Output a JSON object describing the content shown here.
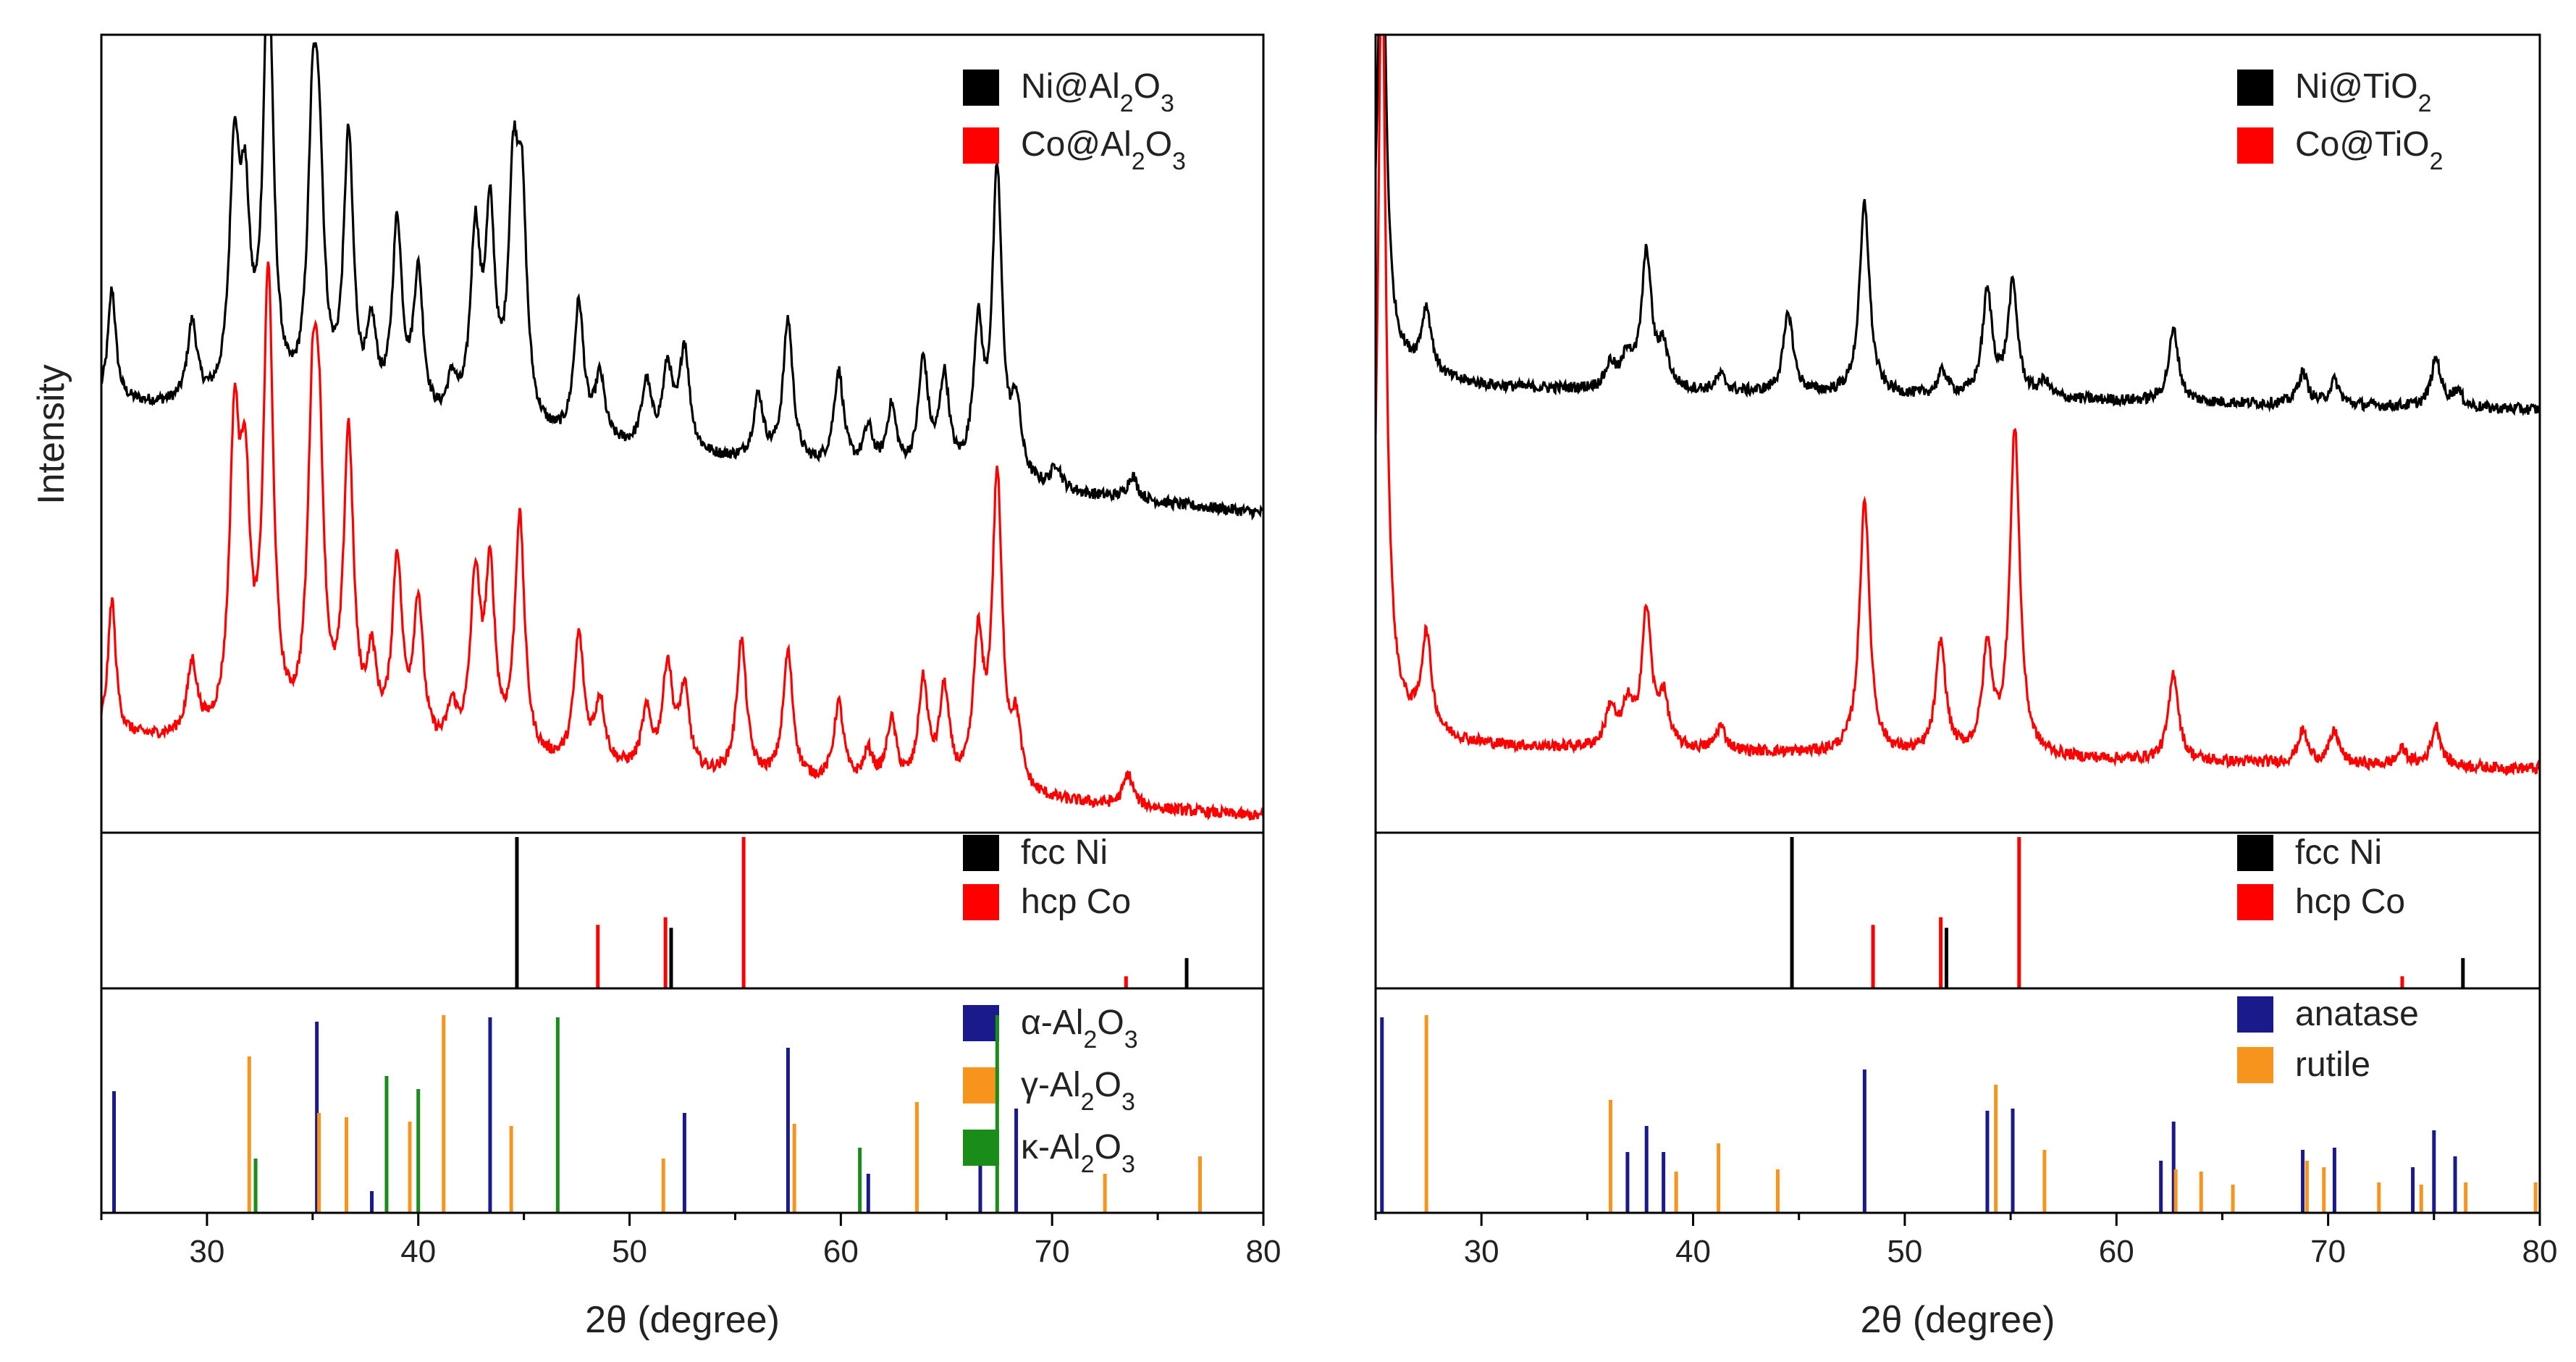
{
  "chart_data": [
    {
      "type": "line",
      "panel": "left",
      "title": "",
      "xlabel": "2θ (degree)",
      "ylabel": "Intensity",
      "xlim": [
        25,
        80
      ],
      "xticks": [
        "30",
        "40",
        "50",
        "60",
        "70",
        "80"
      ],
      "legend": [
        {
          "label": "Ni@Al₂O₃",
          "color": "#000000"
        },
        {
          "label": "Co@Al₂O₃",
          "color": "#ff0000"
        }
      ],
      "legend_position": "top-right",
      "series": [
        {
          "name": "Ni@Al₂O₃",
          "color": "#000000",
          "baseline_start": 0.54,
          "baseline_end": 0.4,
          "peaks": [
            [
              25.5,
              0.14
            ],
            [
              29.3,
              0.1
            ],
            [
              31.3,
              0.3
            ],
            [
              31.8,
              0.22
            ],
            [
              32.9,
              0.56
            ],
            [
              35.0,
              0.31
            ],
            [
              35.3,
              0.26
            ],
            [
              36.7,
              0.34
            ],
            [
              37.8,
              0.1
            ],
            [
              39.0,
              0.24
            ],
            [
              40.0,
              0.18
            ],
            [
              41.6,
              0.05
            ],
            [
              42.7,
              0.23
            ],
            [
              43.4,
              0.25
            ],
            [
              44.5,
              0.28
            ],
            [
              44.9,
              0.26
            ],
            [
              47.6,
              0.17
            ],
            [
              48.6,
              0.08
            ],
            [
              50.8,
              0.08
            ],
            [
              51.8,
              0.1
            ],
            [
              52.6,
              0.13
            ],
            [
              56.1,
              0.08
            ],
            [
              57.5,
              0.18
            ],
            [
              59.9,
              0.12
            ],
            [
              61.3,
              0.05
            ],
            [
              62.4,
              0.08
            ],
            [
              63.9,
              0.14
            ],
            [
              64.9,
              0.12
            ],
            [
              66.5,
              0.18
            ],
            [
              67.4,
              0.38
            ],
            [
              68.3,
              0.09
            ],
            [
              70.2,
              0.03
            ],
            [
              73.8,
              0.03
            ]
          ]
        },
        {
          "name": "Co@Al₂O₃",
          "color": "#ff0000",
          "baseline_start": 0.12,
          "baseline_end": 0.02,
          "peaks": [
            [
              25.5,
              0.17
            ],
            [
              29.3,
              0.09
            ],
            [
              31.3,
              0.36
            ],
            [
              31.8,
              0.28
            ],
            [
              32.9,
              0.57
            ],
            [
              35.0,
              0.35
            ],
            [
              35.3,
              0.3
            ],
            [
              36.7,
              0.38
            ],
            [
              37.8,
              0.1
            ],
            [
              39.0,
              0.23
            ],
            [
              40.0,
              0.18
            ],
            [
              41.6,
              0.05
            ],
            [
              42.7,
              0.21
            ],
            [
              43.4,
              0.22
            ],
            [
              44.8,
              0.3
            ],
            [
              47.6,
              0.16
            ],
            [
              48.6,
              0.08
            ],
            [
              50.8,
              0.07
            ],
            [
              51.8,
              0.13
            ],
            [
              52.6,
              0.1
            ],
            [
              55.3,
              0.17
            ],
            [
              57.5,
              0.16
            ],
            [
              59.9,
              0.1
            ],
            [
              61.3,
              0.04
            ],
            [
              62.4,
              0.08
            ],
            [
              63.9,
              0.13
            ],
            [
              64.9,
              0.12
            ],
            [
              66.5,
              0.18
            ],
            [
              67.4,
              0.39
            ],
            [
              68.3,
              0.08
            ],
            [
              73.6,
              0.04
            ]
          ]
        }
      ],
      "reference_metals": [
        {
          "name": "fcc Ni",
          "color": "#000000",
          "lines": [
            [
              44.6,
              1.0
            ],
            [
              51.9,
              0.4
            ],
            [
              76.3,
              0.2
            ]
          ]
        },
        {
          "name": "hcp Co",
          "color": "#ff0000",
          "lines": [
            [
              48.5,
              0.42
            ],
            [
              51.7,
              0.47
            ],
            [
              55.4,
              1.0
            ],
            [
              73.5,
              0.08
            ]
          ]
        }
      ],
      "reference_supports": [
        {
          "name": "α-Al₂O₃",
          "color": "#1a1a8c",
          "lines": [
            [
              25.6,
              0.56
            ],
            [
              35.2,
              0.88
            ],
            [
              37.8,
              0.1
            ],
            [
              43.4,
              0.9
            ],
            [
              52.6,
              0.46
            ],
            [
              57.5,
              0.76
            ],
            [
              61.3,
              0.18
            ],
            [
              66.6,
              0.36
            ],
            [
              68.3,
              0.48
            ]
          ]
        },
        {
          "name": "γ-Al₂O₃",
          "color": "#f7941d",
          "lines": [
            [
              32.0,
              0.72
            ],
            [
              35.3,
              0.46
            ],
            [
              36.6,
              0.44
            ],
            [
              39.6,
              0.42
            ],
            [
              41.2,
              0.91
            ],
            [
              44.4,
              0.4
            ],
            [
              51.6,
              0.25
            ],
            [
              57.8,
              0.41
            ],
            [
              63.6,
              0.51
            ],
            [
              72.5,
              0.18
            ],
            [
              77.0,
              0.26
            ]
          ]
        },
        {
          "name": "κ-Al₂O₃",
          "color": "#1a8c1a",
          "lines": [
            [
              32.3,
              0.25
            ],
            [
              38.5,
              0.63
            ],
            [
              40.0,
              0.57
            ],
            [
              46.6,
              0.9
            ],
            [
              60.9,
              0.3
            ],
            [
              67.4,
              0.91
            ]
          ]
        }
      ]
    },
    {
      "type": "line",
      "panel": "right",
      "title": "",
      "xlabel": "2θ (degree)",
      "ylabel": "",
      "xlim": [
        25,
        80
      ],
      "xticks": [
        "30",
        "40",
        "50",
        "60",
        "70",
        "80"
      ],
      "legend": [
        {
          "label": "Ni@TiO₂",
          "color": "#000000"
        },
        {
          "label": "Co@TiO₂",
          "color": "#ff0000"
        }
      ],
      "legend_position": "top-right",
      "series": [
        {
          "name": "Ni@TiO₂",
          "color": "#000000",
          "baseline_start": 0.56,
          "baseline_end": 0.53,
          "peaks": [
            [
              25.3,
              0.6
            ],
            [
              27.4,
              0.08
            ],
            [
              36.1,
              0.03
            ],
            [
              36.9,
              0.04
            ],
            [
              37.8,
              0.17
            ],
            [
              38.6,
              0.05
            ],
            [
              41.3,
              0.02
            ],
            [
              44.5,
              0.1
            ],
            [
              48.1,
              0.24
            ],
            [
              51.8,
              0.03
            ],
            [
              53.9,
              0.13
            ],
            [
              55.1,
              0.14
            ],
            [
              56.6,
              0.02
            ],
            [
              62.7,
              0.09
            ],
            [
              68.8,
              0.04
            ],
            [
              70.3,
              0.03
            ],
            [
              75.1,
              0.06
            ],
            [
              76.1,
              0.02
            ]
          ]
        },
        {
          "name": "Co@TiO₂",
          "color": "#ff0000",
          "baseline_start": 0.11,
          "baseline_end": 0.08,
          "peaks": [
            [
              25.3,
              0.95
            ],
            [
              27.4,
              0.12
            ],
            [
              36.1,
              0.05
            ],
            [
              36.9,
              0.05
            ],
            [
              37.8,
              0.17
            ],
            [
              38.6,
              0.06
            ],
            [
              41.3,
              0.03
            ],
            [
              48.1,
              0.32
            ],
            [
              51.7,
              0.14
            ],
            [
              53.9,
              0.13
            ],
            [
              55.2,
              0.41
            ],
            [
              62.7,
              0.11
            ],
            [
              68.8,
              0.04
            ],
            [
              70.3,
              0.04
            ],
            [
              73.5,
              0.02
            ],
            [
              75.1,
              0.05
            ]
          ]
        }
      ],
      "reference_metals": [
        {
          "name": "fcc Ni",
          "color": "#000000",
          "lines": [
            [
              44.6,
              1.0
            ],
            [
              51.9,
              0.4
            ],
            [
              76.3,
              0.2
            ]
          ]
        },
        {
          "name": "hcp Co",
          "color": "#ff0000",
          "lines": [
            [
              48.5,
              0.42
            ],
            [
              51.7,
              0.47
            ],
            [
              55.4,
              1.0
            ],
            [
              73.5,
              0.08
            ]
          ]
        }
      ],
      "reference_supports": [
        {
          "name": "anatase",
          "color": "#1a1a8c",
          "lines": [
            [
              25.3,
              0.9
            ],
            [
              36.9,
              0.28
            ],
            [
              37.8,
              0.4
            ],
            [
              38.6,
              0.28
            ],
            [
              48.1,
              0.66
            ],
            [
              53.9,
              0.47
            ],
            [
              55.1,
              0.48
            ],
            [
              62.1,
              0.24
            ],
            [
              62.7,
              0.42
            ],
            [
              68.8,
              0.29
            ],
            [
              70.3,
              0.3
            ],
            [
              74.0,
              0.21
            ],
            [
              75.0,
              0.38
            ],
            [
              76.0,
              0.26
            ]
          ]
        },
        {
          "name": "rutile",
          "color": "#f7941d",
          "lines": [
            [
              27.4,
              0.91
            ],
            [
              36.1,
              0.52
            ],
            [
              39.2,
              0.19
            ],
            [
              41.2,
              0.32
            ],
            [
              44.0,
              0.2
            ],
            [
              54.3,
              0.59
            ],
            [
              56.6,
              0.29
            ],
            [
              62.8,
              0.2
            ],
            [
              64.0,
              0.19
            ],
            [
              65.5,
              0.13
            ],
            [
              69.0,
              0.24
            ],
            [
              69.8,
              0.21
            ],
            [
              72.4,
              0.14
            ],
            [
              74.4,
              0.13
            ],
            [
              76.5,
              0.14
            ],
            [
              79.8,
              0.14
            ]
          ]
        }
      ]
    }
  ]
}
